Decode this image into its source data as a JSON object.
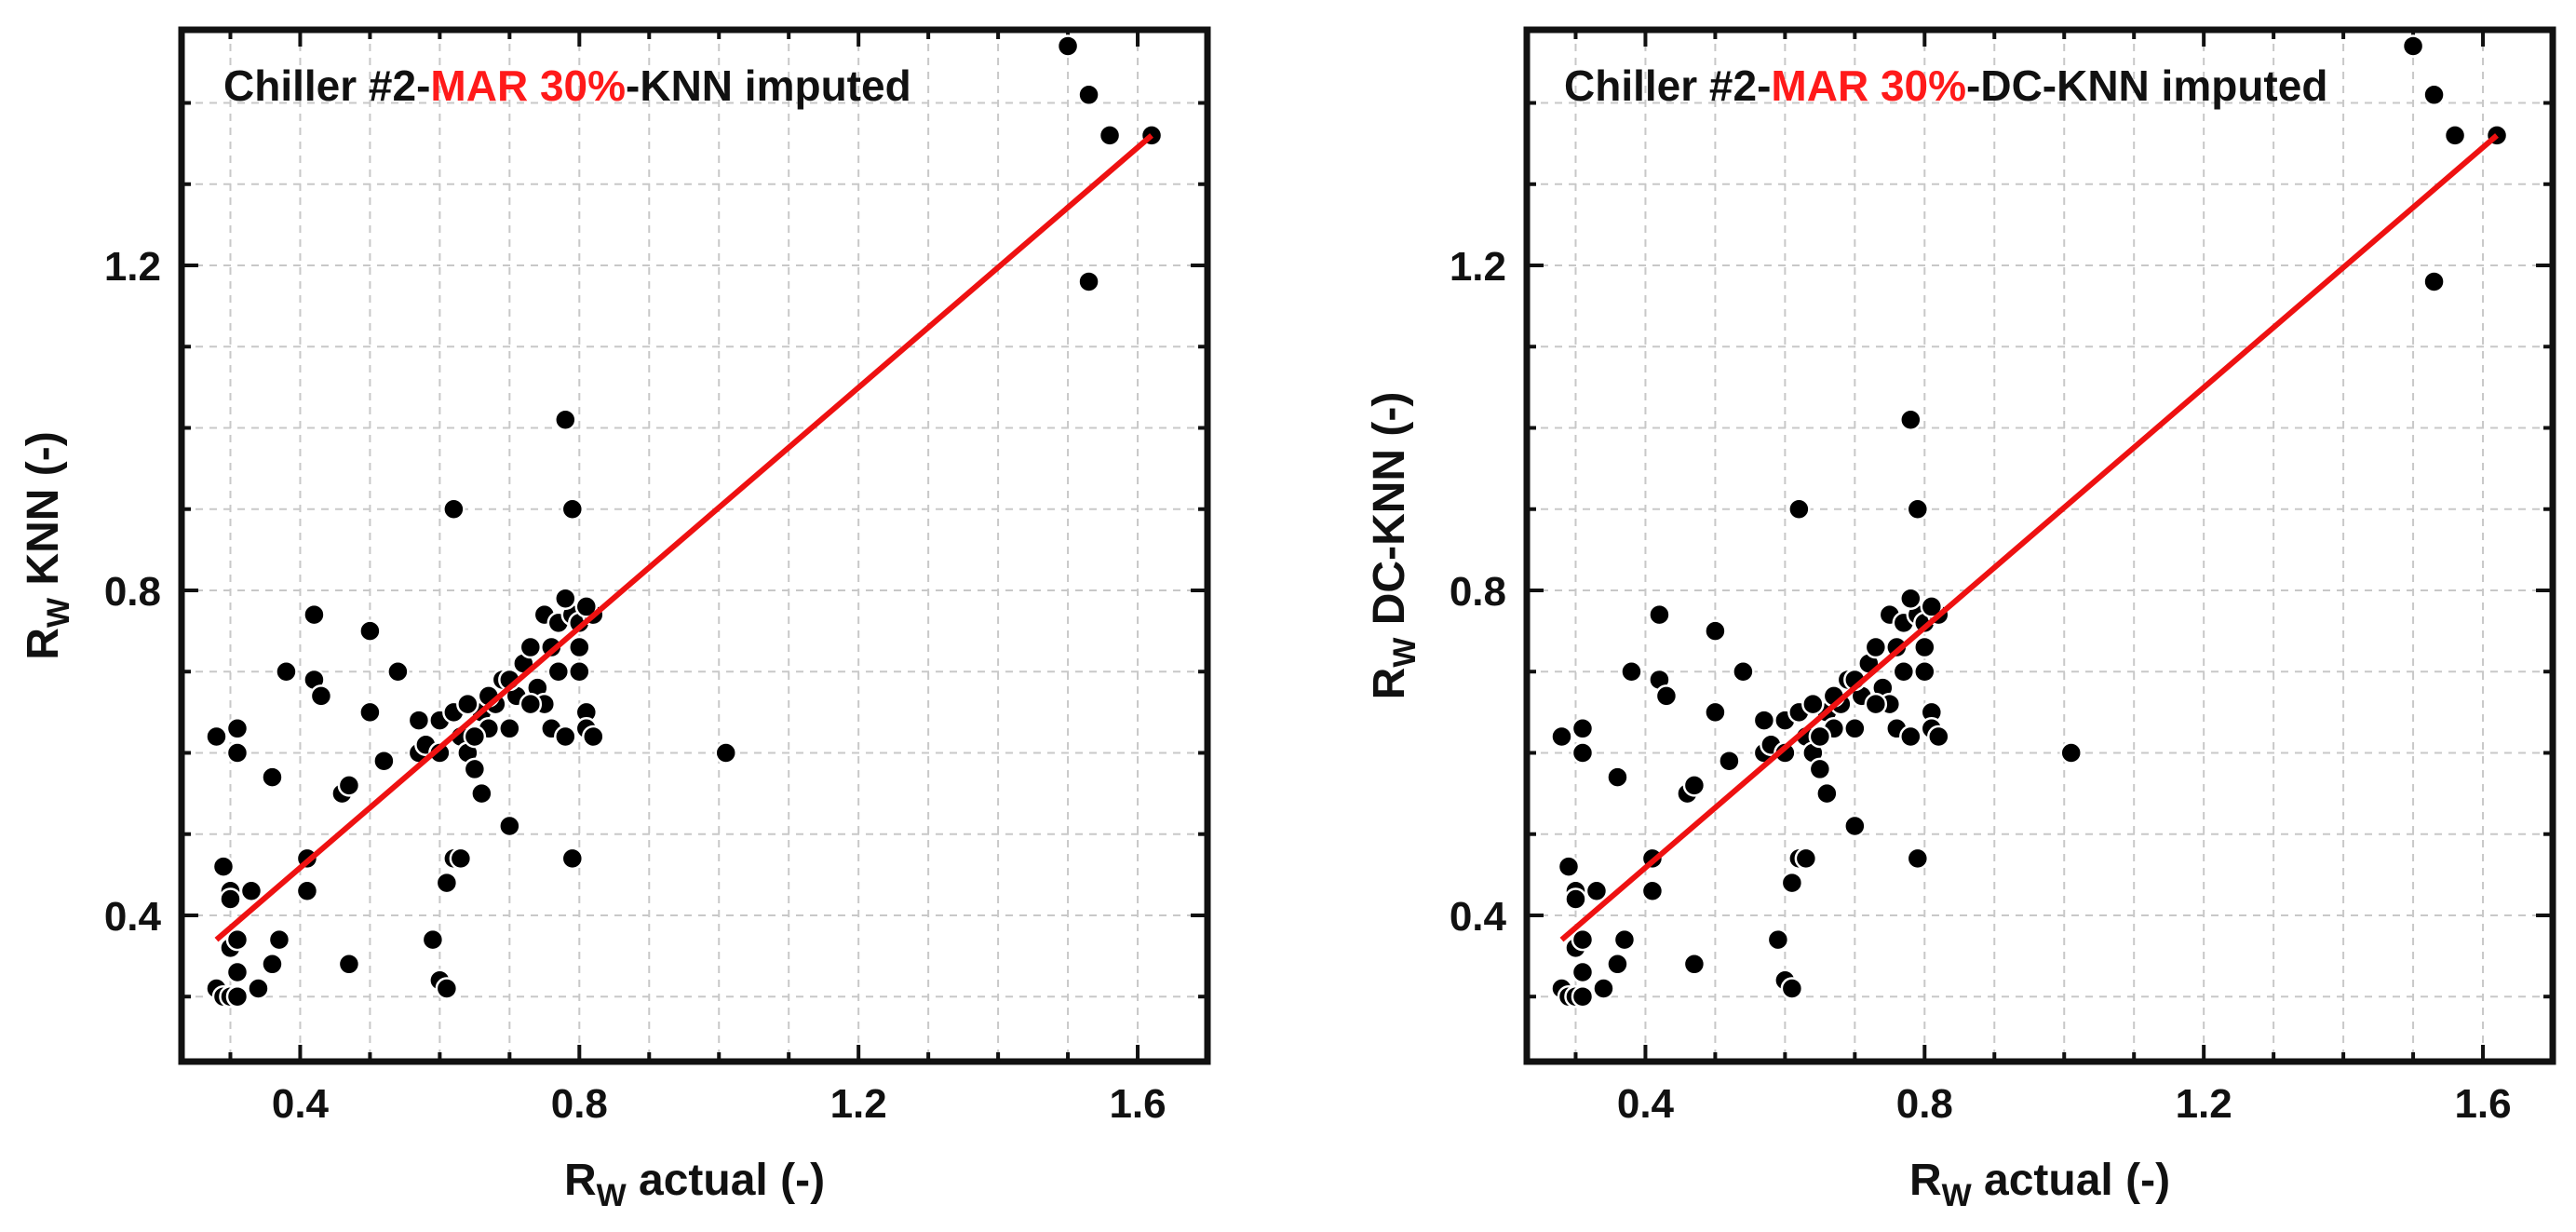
{
  "colors": {
    "fit_line": "#ee1111",
    "points": "#000000",
    "accent": "#ff1a1a",
    "grid": "#c8c8c8",
    "frame": "#111111"
  },
  "chart_data": [
    {
      "type": "scatter",
      "title_parts": [
        "Chiller #2-",
        "MAR 30%",
        "-KNN imputed"
      ],
      "xlabel_main": "R",
      "xlabel_sub": "W",
      "xlabel_rest": " actual (-)",
      "ylabel_main": "R",
      "ylabel_sub": "W",
      "ylabel_rest": " KNN (-)",
      "xlim": [
        0.23,
        1.7
      ],
      "ylim": [
        0.22,
        1.49
      ],
      "xticks": [
        0.4,
        0.8,
        1.2,
        1.6
      ],
      "xtick_labels": [
        "0.4",
        "0.8",
        "1.2",
        "1.6"
      ],
      "yticks": [
        0.4,
        0.8,
        1.2
      ],
      "ytick_labels": [
        "0.4",
        "0.8",
        "1.2"
      ],
      "grid_x": [
        0.3,
        0.4,
        0.5,
        0.6,
        0.7,
        0.8,
        0.9,
        1.0,
        1.1,
        1.2,
        1.3,
        1.4,
        1.5,
        1.6
      ],
      "grid_y": [
        0.3,
        0.4,
        0.5,
        0.6,
        0.7,
        0.8,
        0.9,
        1.0,
        1.1,
        1.2,
        1.3,
        1.4
      ],
      "fit_line": {
        "x": [
          0.28,
          1.62
        ],
        "y": [
          0.37,
          1.36
        ]
      },
      "points": [
        [
          0.28,
          0.62
        ],
        [
          0.29,
          0.46
        ],
        [
          0.3,
          0.43
        ],
        [
          0.3,
          0.42
        ],
        [
          0.31,
          0.63
        ],
        [
          0.31,
          0.6
        ],
        [
          0.3,
          0.36
        ],
        [
          0.31,
          0.37
        ],
        [
          0.31,
          0.33
        ],
        [
          0.28,
          0.31
        ],
        [
          0.29,
          0.3
        ],
        [
          0.3,
          0.3
        ],
        [
          0.31,
          0.3
        ],
        [
          0.33,
          0.43
        ],
        [
          0.34,
          0.31
        ],
        [
          0.36,
          0.34
        ],
        [
          0.37,
          0.37
        ],
        [
          0.36,
          0.57
        ],
        [
          0.38,
          0.7
        ],
        [
          0.41,
          0.43
        ],
        [
          0.41,
          0.47
        ],
        [
          0.42,
          0.77
        ],
        [
          0.42,
          0.69
        ],
        [
          0.43,
          0.67
        ],
        [
          0.46,
          0.55
        ],
        [
          0.47,
          0.56
        ],
        [
          0.47,
          0.34
        ],
        [
          0.5,
          0.75
        ],
        [
          0.5,
          0.65
        ],
        [
          0.52,
          0.59
        ],
        [
          0.54,
          0.7
        ],
        [
          0.57,
          0.6
        ],
        [
          0.57,
          0.64
        ],
        [
          0.58,
          0.61
        ],
        [
          0.59,
          0.37
        ],
        [
          0.6,
          0.32
        ],
        [
          0.6,
          0.6
        ],
        [
          0.61,
          0.31
        ],
        [
          0.61,
          0.44
        ],
        [
          0.62,
          0.47
        ],
        [
          0.62,
          0.9
        ],
        [
          0.63,
          0.47
        ],
        [
          0.63,
          0.62
        ],
        [
          0.64,
          0.6
        ],
        [
          0.65,
          0.58
        ],
        [
          0.66,
          0.55
        ],
        [
          0.66,
          0.65
        ],
        [
          0.67,
          0.63
        ],
        [
          0.68,
          0.66
        ],
        [
          0.69,
          0.69
        ],
        [
          0.7,
          0.51
        ],
        [
          0.7,
          0.63
        ],
        [
          0.71,
          0.67
        ],
        [
          0.72,
          0.71
        ],
        [
          0.73,
          0.73
        ],
        [
          0.74,
          0.68
        ],
        [
          0.75,
          0.66
        ],
        [
          0.75,
          0.77
        ],
        [
          0.76,
          0.63
        ],
        [
          0.77,
          0.7
        ],
        [
          0.77,
          0.76
        ],
        [
          0.78,
          0.62
        ],
        [
          0.78,
          1.01
        ],
        [
          0.79,
          0.9
        ],
        [
          0.79,
          0.47
        ],
        [
          0.79,
          0.77
        ],
        [
          0.8,
          0.73
        ],
        [
          0.8,
          0.7
        ],
        [
          0.8,
          0.76
        ],
        [
          0.81,
          0.65
        ],
        [
          0.81,
          0.63
        ],
        [
          0.82,
          0.77
        ],
        [
          0.82,
          0.62
        ],
        [
          0.81,
          0.78
        ],
        [
          0.6,
          0.64
        ],
        [
          0.62,
          0.65
        ],
        [
          0.64,
          0.66
        ],
        [
          0.65,
          0.62
        ],
        [
          0.67,
          0.67
        ],
        [
          0.7,
          0.69
        ],
        [
          0.73,
          0.66
        ],
        [
          0.76,
          0.73
        ],
        [
          0.78,
          0.79
        ],
        [
          1.01,
          0.6
        ],
        [
          1.5,
          1.47
        ],
        [
          1.53,
          1.41
        ],
        [
          1.56,
          1.36
        ],
        [
          1.62,
          1.36
        ],
        [
          1.53,
          1.18
        ]
      ]
    },
    {
      "type": "scatter",
      "title_parts": [
        "Chiller #2-",
        "MAR 30%",
        "-DC-KNN imputed"
      ],
      "xlabel_main": "R",
      "xlabel_sub": "W",
      "xlabel_rest": " actual (-)",
      "ylabel_main": "R",
      "ylabel_sub": "W",
      "ylabel_rest": " DC-KNN (-)",
      "xlim": [
        0.23,
        1.7
      ],
      "ylim": [
        0.22,
        1.49
      ],
      "xticks": [
        0.4,
        0.8,
        1.2,
        1.6
      ],
      "xtick_labels": [
        "0.4",
        "0.8",
        "1.2",
        "1.6"
      ],
      "yticks": [
        0.4,
        0.8,
        1.2
      ],
      "ytick_labels": [
        "0.4",
        "0.8",
        "1.2"
      ],
      "grid_x": [
        0.3,
        0.4,
        0.5,
        0.6,
        0.7,
        0.8,
        0.9,
        1.0,
        1.1,
        1.2,
        1.3,
        1.4,
        1.5,
        1.6
      ],
      "grid_y": [
        0.3,
        0.4,
        0.5,
        0.6,
        0.7,
        0.8,
        0.9,
        1.0,
        1.1,
        1.2,
        1.3,
        1.4
      ],
      "fit_line": {
        "x": [
          0.28,
          1.62
        ],
        "y": [
          0.37,
          1.36
        ]
      },
      "points": [
        [
          0.28,
          0.62
        ],
        [
          0.29,
          0.46
        ],
        [
          0.3,
          0.43
        ],
        [
          0.3,
          0.42
        ],
        [
          0.31,
          0.63
        ],
        [
          0.31,
          0.6
        ],
        [
          0.3,
          0.36
        ],
        [
          0.31,
          0.37
        ],
        [
          0.31,
          0.33
        ],
        [
          0.28,
          0.31
        ],
        [
          0.29,
          0.3
        ],
        [
          0.3,
          0.3
        ],
        [
          0.31,
          0.3
        ],
        [
          0.33,
          0.43
        ],
        [
          0.34,
          0.31
        ],
        [
          0.36,
          0.34
        ],
        [
          0.37,
          0.37
        ],
        [
          0.36,
          0.57
        ],
        [
          0.38,
          0.7
        ],
        [
          0.41,
          0.43
        ],
        [
          0.41,
          0.47
        ],
        [
          0.42,
          0.77
        ],
        [
          0.42,
          0.69
        ],
        [
          0.43,
          0.67
        ],
        [
          0.46,
          0.55
        ],
        [
          0.47,
          0.56
        ],
        [
          0.47,
          0.34
        ],
        [
          0.5,
          0.75
        ],
        [
          0.5,
          0.65
        ],
        [
          0.52,
          0.59
        ],
        [
          0.54,
          0.7
        ],
        [
          0.57,
          0.6
        ],
        [
          0.57,
          0.64
        ],
        [
          0.58,
          0.61
        ],
        [
          0.59,
          0.37
        ],
        [
          0.6,
          0.32
        ],
        [
          0.6,
          0.6
        ],
        [
          0.61,
          0.31
        ],
        [
          0.61,
          0.44
        ],
        [
          0.62,
          0.47
        ],
        [
          0.62,
          0.9
        ],
        [
          0.63,
          0.47
        ],
        [
          0.63,
          0.62
        ],
        [
          0.64,
          0.6
        ],
        [
          0.65,
          0.58
        ],
        [
          0.66,
          0.55
        ],
        [
          0.66,
          0.65
        ],
        [
          0.67,
          0.63
        ],
        [
          0.68,
          0.66
        ],
        [
          0.69,
          0.69
        ],
        [
          0.7,
          0.51
        ],
        [
          0.7,
          0.63
        ],
        [
          0.71,
          0.67
        ],
        [
          0.72,
          0.71
        ],
        [
          0.73,
          0.73
        ],
        [
          0.74,
          0.68
        ],
        [
          0.75,
          0.66
        ],
        [
          0.75,
          0.77
        ],
        [
          0.76,
          0.63
        ],
        [
          0.77,
          0.7
        ],
        [
          0.77,
          0.76
        ],
        [
          0.78,
          0.62
        ],
        [
          0.78,
          1.01
        ],
        [
          0.79,
          0.9
        ],
        [
          0.79,
          0.47
        ],
        [
          0.79,
          0.77
        ],
        [
          0.8,
          0.73
        ],
        [
          0.8,
          0.7
        ],
        [
          0.8,
          0.76
        ],
        [
          0.81,
          0.65
        ],
        [
          0.81,
          0.63
        ],
        [
          0.82,
          0.77
        ],
        [
          0.82,
          0.62
        ],
        [
          0.81,
          0.78
        ],
        [
          0.6,
          0.64
        ],
        [
          0.62,
          0.65
        ],
        [
          0.64,
          0.66
        ],
        [
          0.65,
          0.62
        ],
        [
          0.67,
          0.67
        ],
        [
          0.7,
          0.69
        ],
        [
          0.73,
          0.66
        ],
        [
          0.76,
          0.73
        ],
        [
          0.78,
          0.79
        ],
        [
          1.01,
          0.6
        ],
        [
          1.5,
          1.47
        ],
        [
          1.53,
          1.41
        ],
        [
          1.56,
          1.36
        ],
        [
          1.62,
          1.36
        ],
        [
          1.53,
          1.18
        ]
      ]
    }
  ]
}
